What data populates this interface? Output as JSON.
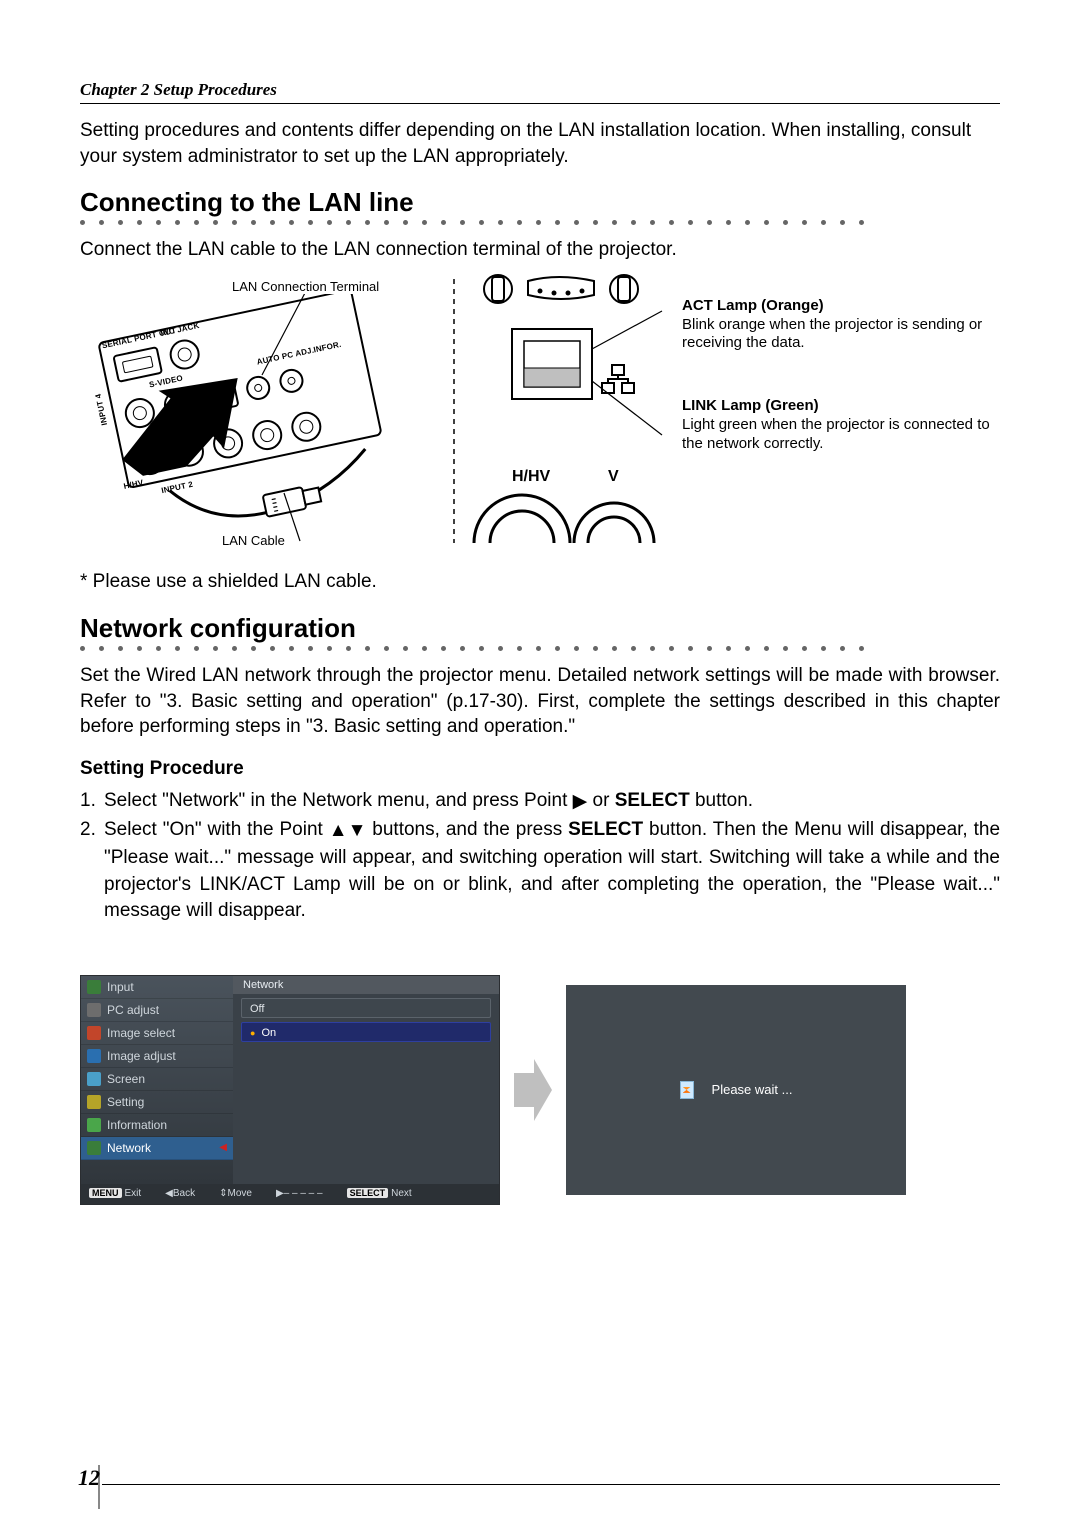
{
  "chapter_header": "Chapter 2 Setup Procedures",
  "intro_p1": "Setting procedures and contents differ depending on the LAN installation location. When installing, consult your system administrator to set up the LAN appropriately.",
  "section1_heading": "Connecting to the LAN line",
  "section1_body": "Connect the LAN cable to the LAN connection terminal of the projector.",
  "fig_left": {
    "callout_terminal": "LAN Connection Terminal",
    "callout_cable": "LAN Cable",
    "port_labels": {
      "serial": "SERIAL PORT OUT",
      "rc": "R/C JACK",
      "input4": "INPUT 4",
      "svideo": "S-VIDEO",
      "autopc": "AUTO PC ADJ.",
      "infor": "INFOR.",
      "hhv": "H/HV",
      "input2": "INPUT 2"
    }
  },
  "fig_mid": {
    "h_hv_label": "H/HV",
    "v_label": "V"
  },
  "fig_right": {
    "act_title": "ACT Lamp (Orange)",
    "act_body": "Blink orange when the projector is sending or receiving the data.",
    "link_title": "LINK Lamp (Green)",
    "link_body": "Light green when the projector is connected to the network correctly."
  },
  "note_shielded": "* Please use a shielded LAN cable.",
  "section2_heading": "Network configuration",
  "section2_body": "Set the Wired LAN network through the projector menu. Detailed network settings will be made with browser. Refer to \"3. Basic setting and operation\" (p.17-30). First, complete the settings described in this chapter before performing steps in \"3. Basic setting and operation.\"",
  "setting_procedure_heading": "Setting Procedure",
  "steps": {
    "s1_a": "Select \"Network\" in the Network menu, and press Point ",
    "s1_b": " or ",
    "s1_c": "SELECT",
    "s1_d": " button.",
    "s2_a": "Select \"On\" with the Point ",
    "s2_b": " buttons, and the press ",
    "s2_c": "SELECT",
    "s2_d": " button. Then the Menu will disappear, the \"Please wait...\" message will appear, and switching operation will start. Switching will take a while and the projector's LINK/ACT Lamp will be on or blink, and after completing the operation, the \"Please wait...\" message will disappear."
  },
  "osd": {
    "menu_items": [
      {
        "label": "Input",
        "icon_color": "#3a7d3a"
      },
      {
        "label": "PC adjust",
        "icon_color": "#6d6d6d"
      },
      {
        "label": "Image select",
        "icon_color": "#c2452a"
      },
      {
        "label": "Image adjust",
        "icon_color": "#2a6fb0"
      },
      {
        "label": "Screen",
        "icon_color": "#4aa0c9"
      },
      {
        "label": "Setting",
        "icon_color": "#b5a428"
      },
      {
        "label": "Information",
        "icon_color": "#4aa64a"
      },
      {
        "label": "Network",
        "icon_color": "#3a7d3a"
      }
    ],
    "active_index": 7,
    "panel_title": "Network",
    "opt_off": "Off",
    "opt_on": "On",
    "footer": {
      "exit_key": "MENU",
      "exit": "Exit",
      "back_key": "◀",
      "back": "Back",
      "move_key": "⇕",
      "move": "Move",
      "dash_key": "▶",
      "dash": "– – – – –",
      "next_key": "SELECT",
      "next": "Next"
    },
    "wait_text": "Please wait ..."
  },
  "page_number": "12",
  "glyphs": {
    "tri_right": "▶",
    "tri_up": "▲",
    "tri_down": "▼"
  },
  "dotted_rule_count": 42
}
